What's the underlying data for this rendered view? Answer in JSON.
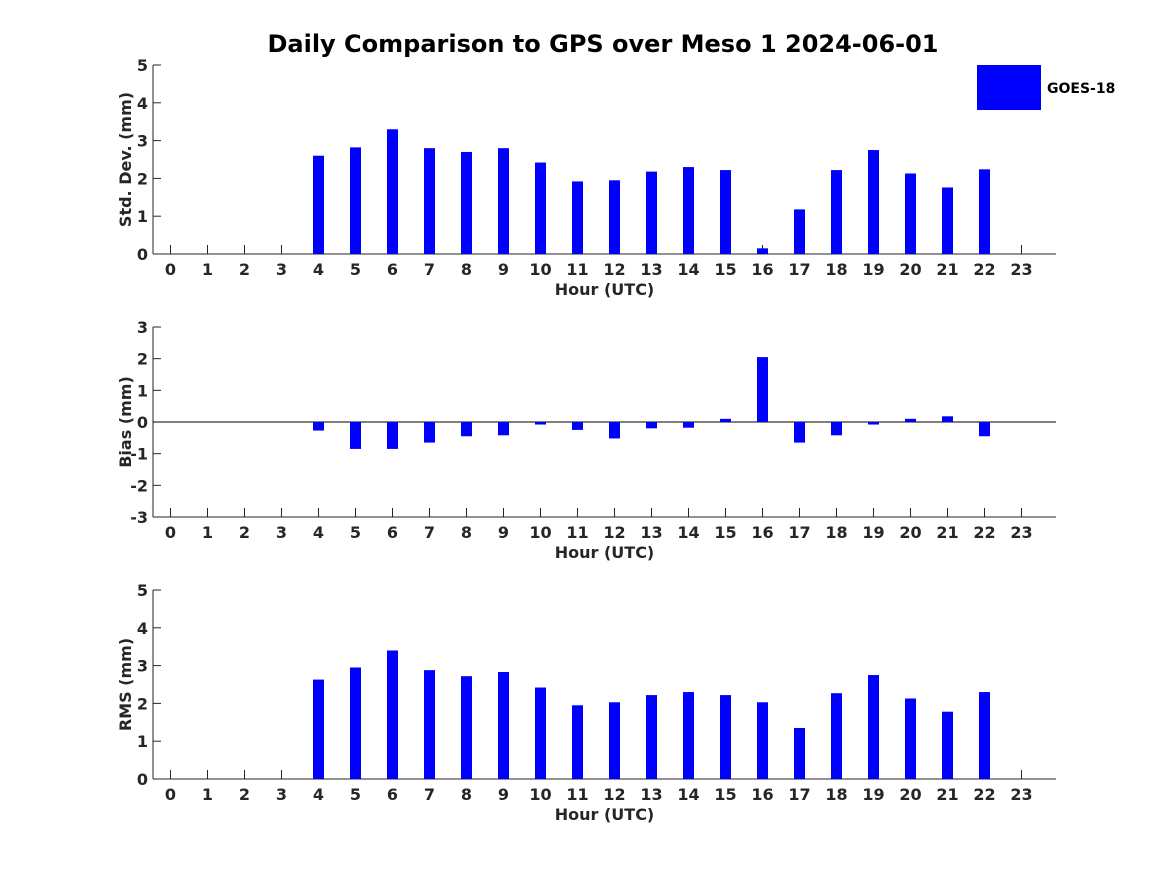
{
  "figure_title": "Daily Comparison to GPS over Meso 1 2024-06-01",
  "legend": {
    "label": "GOES-18",
    "color": "#0000ff",
    "placement": "top-right"
  },
  "chart_data": [
    {
      "type": "bar",
      "xlabel": "Hour (UTC)",
      "ylabel": "Std. Dev. (mm)",
      "ylim": [
        0,
        5
      ],
      "yticks": [
        "0",
        "1",
        "2",
        "3",
        "4",
        "5"
      ],
      "categories": [
        "0",
        "1",
        "2",
        "3",
        "4",
        "5",
        "6",
        "7",
        "8",
        "9",
        "10",
        "11",
        "12",
        "13",
        "14",
        "15",
        "16",
        "17",
        "18",
        "19",
        "20",
        "21",
        "22",
        "23"
      ],
      "series": [
        {
          "name": "GOES-18",
          "color": "#0000ff",
          "values": [
            null,
            null,
            null,
            null,
            2.6,
            2.82,
            3.3,
            2.8,
            2.7,
            2.8,
            2.42,
            1.92,
            1.95,
            2.18,
            2.3,
            2.22,
            0.15,
            1.18,
            2.22,
            2.75,
            2.13,
            1.76,
            2.24,
            null
          ]
        }
      ]
    },
    {
      "type": "bar",
      "xlabel": "Hour (UTC)",
      "ylabel": "Bias (mm)",
      "ylim": [
        -3,
        3
      ],
      "yticks": [
        "-3",
        "-2",
        "-1",
        "0",
        "1",
        "2",
        "3"
      ],
      "categories": [
        "0",
        "1",
        "2",
        "3",
        "4",
        "5",
        "6",
        "7",
        "8",
        "9",
        "10",
        "11",
        "12",
        "13",
        "14",
        "15",
        "16",
        "17",
        "18",
        "19",
        "20",
        "21",
        "22",
        "23"
      ],
      "series": [
        {
          "name": "GOES-18",
          "color": "#0000ff",
          "values": [
            null,
            null,
            null,
            null,
            -0.27,
            -0.85,
            -0.85,
            -0.65,
            -0.45,
            -0.42,
            -0.08,
            -0.25,
            -0.52,
            -0.2,
            -0.18,
            0.1,
            2.05,
            -0.65,
            -0.42,
            -0.08,
            0.1,
            0.18,
            -0.45,
            null
          ]
        }
      ]
    },
    {
      "type": "bar",
      "xlabel": "Hour (UTC)",
      "ylabel": "RMS (mm)",
      "ylim": [
        0,
        5
      ],
      "yticks": [
        "0",
        "1",
        "2",
        "3",
        "4",
        "5"
      ],
      "categories": [
        "0",
        "1",
        "2",
        "3",
        "4",
        "5",
        "6",
        "7",
        "8",
        "9",
        "10",
        "11",
        "12",
        "13",
        "14",
        "15",
        "16",
        "17",
        "18",
        "19",
        "20",
        "21",
        "22",
        "23"
      ],
      "series": [
        {
          "name": "GOES-18",
          "color": "#0000ff",
          "values": [
            null,
            null,
            null,
            null,
            2.63,
            2.95,
            3.4,
            2.88,
            2.72,
            2.83,
            2.42,
            1.95,
            2.03,
            2.22,
            2.3,
            2.22,
            2.03,
            1.35,
            2.27,
            2.75,
            2.13,
            1.78,
            2.3,
            null
          ]
        }
      ]
    }
  ]
}
